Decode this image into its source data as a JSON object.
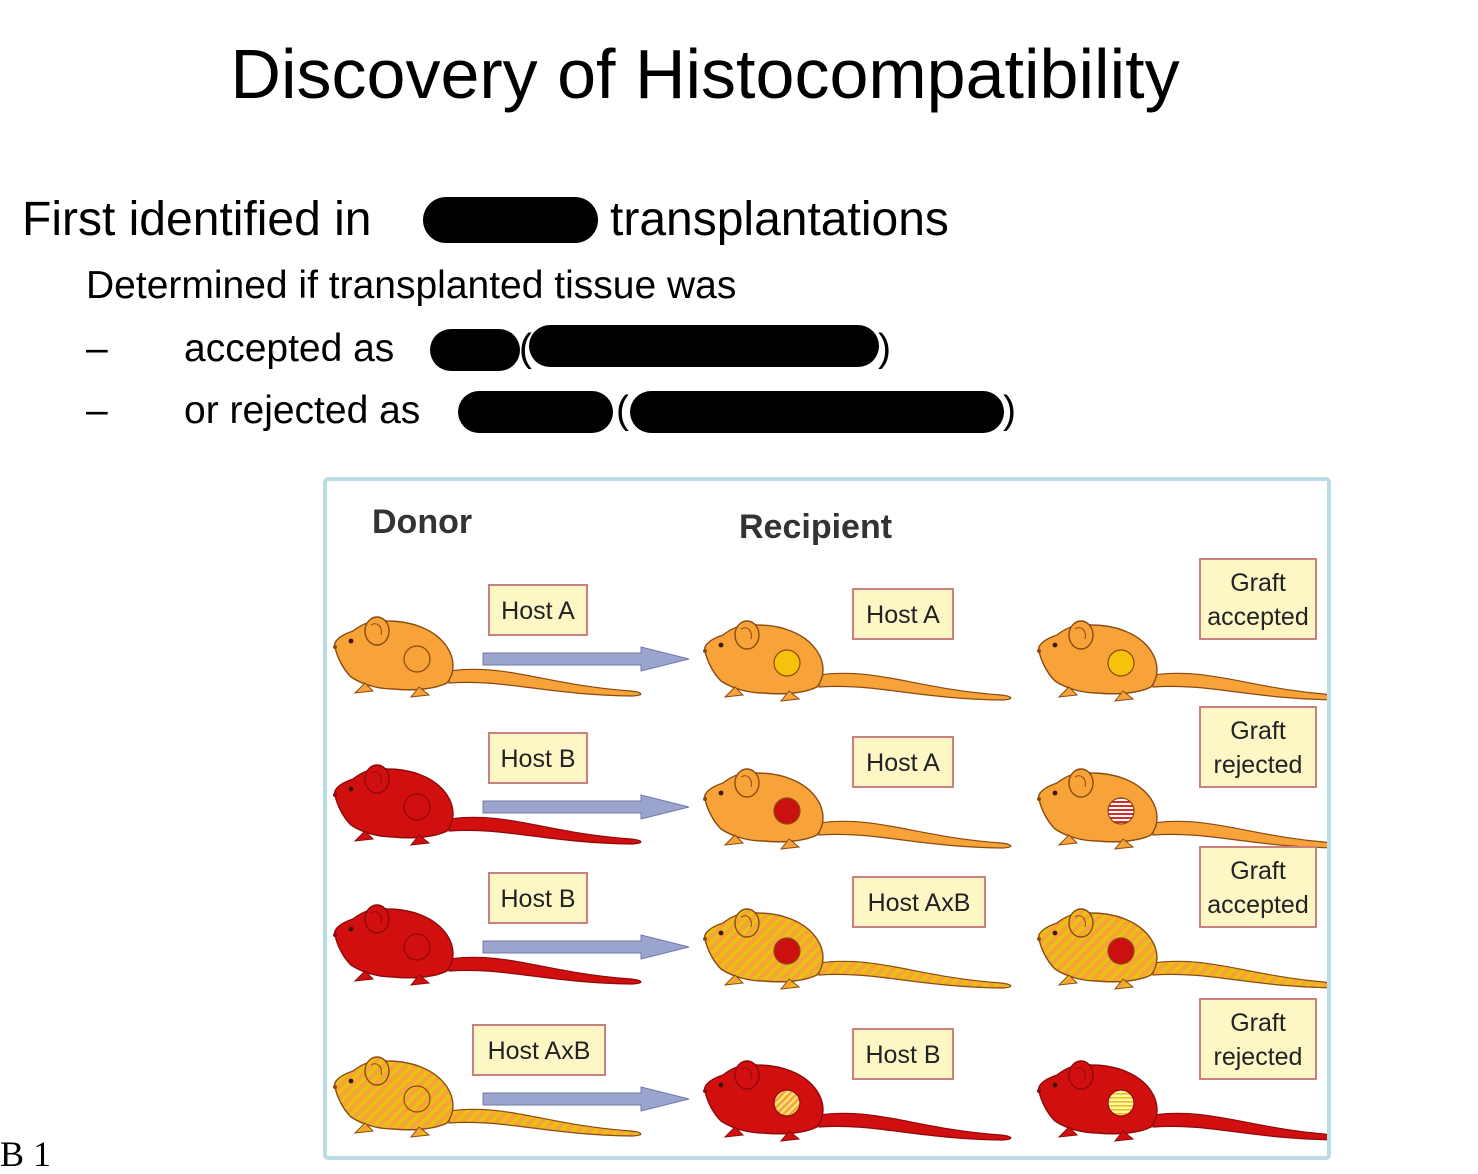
{
  "slide": {
    "title": "Discovery of Histocompatibility",
    "line1_start": "First identified in",
    "line1_end": "transplantations",
    "line2": "Determined if transplanted tissue was",
    "bullet_dash": "–",
    "bullet1": "accepted as",
    "bullet1_paren_open": "(",
    "bullet1_paren_close": ")",
    "bullet2": "or rejected as",
    "bullet2_paren_open": "(",
    "bullet2_paren_close": ")",
    "slide_number": "B 1"
  },
  "figure": {
    "header_donor": "Donor",
    "header_recipient": "Recipient",
    "colors": {
      "host_a": "#f7a33a",
      "host_b": "#d20f0f",
      "hybrid_base": "#f7a33a",
      "hybrid_stripe": "#e8c210",
      "graft_yellow": "#f6c20c",
      "graft_red": "#cc1010",
      "arrow": "#9aa4cc",
      "label_bg": "#fdf7c6",
      "label_border": "#c9807e",
      "frame": "#b9dde2"
    },
    "rows": [
      {
        "donor_label": "Host A",
        "donor_type": "A",
        "recipient_label": "Host A",
        "recipient_type": "A",
        "graft_type": "A",
        "result_line1": "Graft",
        "result_line2": "accepted",
        "outcome": "accepted"
      },
      {
        "donor_label": "Host B",
        "donor_type": "B",
        "recipient_label": "Host A",
        "recipient_type": "A",
        "graft_type": "B",
        "result_line1": "Graft",
        "result_line2": "rejected",
        "outcome": "rejected"
      },
      {
        "donor_label": "Host B",
        "donor_type": "B",
        "recipient_label": "Host AxB",
        "recipient_type": "AxB",
        "graft_type": "B",
        "result_line1": "Graft",
        "result_line2": "accepted",
        "outcome": "accepted"
      },
      {
        "donor_label": "Host AxB",
        "donor_type": "AxB",
        "recipient_label": "Host B",
        "recipient_type": "B",
        "graft_type": "AxB",
        "result_line1": "Graft",
        "result_line2": "rejected",
        "outcome": "rejected"
      }
    ]
  }
}
